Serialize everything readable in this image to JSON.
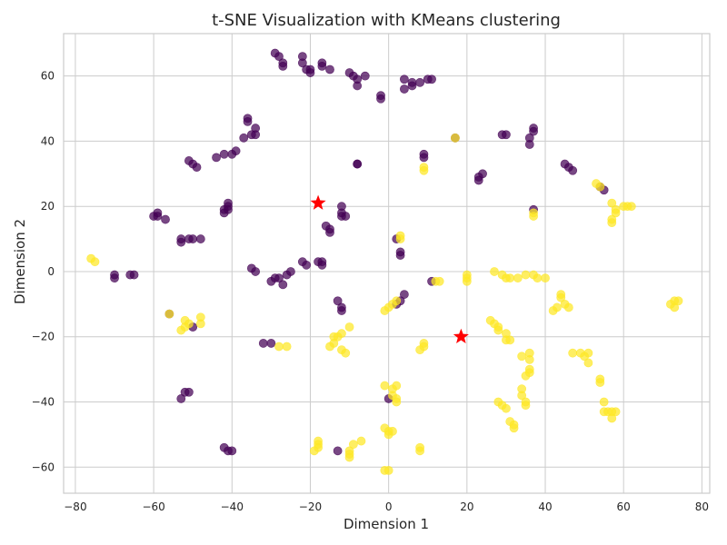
{
  "chart_data": {
    "type": "scatter",
    "title": "t-SNE Visualization with KMeans clustering",
    "xlabel": "Dimension 1",
    "ylabel": "Dimension 2",
    "xlim": [
      -83,
      82
    ],
    "ylim": [
      -68,
      73
    ],
    "xticks": [
      -80,
      -60,
      -40,
      -20,
      0,
      20,
      40,
      60,
      80
    ],
    "yticks": [
      -60,
      -40,
      -20,
      0,
      20,
      40,
      60
    ],
    "grid": true,
    "colors": {
      "cluster_0": "#440154",
      "cluster_1": "#fde725",
      "centroid": "#ff0000",
      "frame": "#cccccc"
    },
    "series": [
      {
        "cluster": 0,
        "points": [
          [
            -29,
            67
          ],
          [
            -28,
            66
          ],
          [
            -27,
            64
          ],
          [
            -27,
            63
          ],
          [
            -22,
            66
          ],
          [
            -22,
            64
          ],
          [
            -21,
            62
          ],
          [
            -20,
            62
          ],
          [
            -20,
            61
          ],
          [
            -17,
            64
          ],
          [
            -17,
            63
          ],
          [
            -15,
            62
          ],
          [
            -10,
            61
          ],
          [
            -9,
            60
          ],
          [
            -8,
            59
          ],
          [
            -8,
            57
          ],
          [
            -6,
            60
          ],
          [
            -2,
            54
          ],
          [
            -2,
            53
          ],
          [
            4,
            59
          ],
          [
            4,
            56
          ],
          [
            6,
            57
          ],
          [
            6,
            58
          ],
          [
            8,
            58
          ],
          [
            10,
            59
          ],
          [
            11,
            59
          ],
          [
            -36,
            47
          ],
          [
            -36,
            46
          ],
          [
            -34,
            44
          ],
          [
            -35,
            42
          ],
          [
            -34,
            42
          ],
          [
            -37,
            41
          ],
          [
            -39,
            37
          ],
          [
            -40,
            36
          ],
          [
            -42,
            36
          ],
          [
            -44,
            35
          ],
          [
            -51,
            34
          ],
          [
            -50,
            33
          ],
          [
            -49,
            32
          ],
          [
            -8,
            33
          ],
          [
            -8,
            33
          ],
          [
            9,
            36
          ],
          [
            9,
            35
          ],
          [
            17,
            41
          ],
          [
            24,
            30
          ],
          [
            23,
            29
          ],
          [
            23,
            28
          ],
          [
            29,
            42
          ],
          [
            30,
            42
          ],
          [
            36,
            41
          ],
          [
            36,
            39
          ],
          [
            37,
            44
          ],
          [
            37,
            43
          ],
          [
            45,
            33
          ],
          [
            46,
            32
          ],
          [
            47,
            31
          ],
          [
            54,
            26
          ],
          [
            55,
            25
          ],
          [
            -60,
            17
          ],
          [
            -59,
            18
          ],
          [
            -59,
            17
          ],
          [
            -57,
            16
          ],
          [
            -53,
            9
          ],
          [
            -53,
            10
          ],
          [
            -51,
            10
          ],
          [
            -50,
            10
          ],
          [
            -48,
            10
          ],
          [
            -42,
            18
          ],
          [
            -42,
            19
          ],
          [
            -41,
            20
          ],
          [
            -41,
            21
          ],
          [
            -41,
            19
          ],
          [
            -12,
            20
          ],
          [
            -12,
            18
          ],
          [
            -12,
            17
          ],
          [
            -11,
            17
          ],
          [
            -16,
            14
          ],
          [
            -15,
            13
          ],
          [
            -15,
            12
          ],
          [
            -22,
            3
          ],
          [
            -21,
            2
          ],
          [
            -18,
            3
          ],
          [
            -17,
            3
          ],
          [
            -17,
            2
          ],
          [
            2,
            10
          ],
          [
            3,
            6
          ],
          [
            3,
            5
          ],
          [
            37,
            19
          ],
          [
            -35,
            1
          ],
          [
            -34,
            0
          ],
          [
            -30,
            -3
          ],
          [
            -29,
            -2
          ],
          [
            -28,
            -2
          ],
          [
            -27,
            -4
          ],
          [
            -26,
            -1
          ],
          [
            -25,
            0
          ],
          [
            -70,
            -1
          ],
          [
            -70,
            -2
          ],
          [
            -66,
            -1
          ],
          [
            -65,
            -1
          ],
          [
            11,
            -3
          ],
          [
            4,
            -7
          ],
          [
            3,
            -9
          ],
          [
            2,
            -10
          ],
          [
            -13,
            -9
          ],
          [
            -12,
            -11
          ],
          [
            -12,
            -12
          ],
          [
            -56,
            -13
          ],
          [
            -50,
            -17
          ],
          [
            -32,
            -22
          ],
          [
            -30,
            -22
          ],
          [
            -52,
            -37
          ],
          [
            -51,
            -37
          ],
          [
            -53,
            -39
          ],
          [
            0,
            -39
          ],
          [
            -42,
            -54
          ],
          [
            -41,
            -55
          ],
          [
            -40,
            -55
          ],
          [
            -13,
            -55
          ]
        ]
      },
      {
        "cluster": 1,
        "points": [
          [
            -76,
            4
          ],
          [
            -75,
            3
          ],
          [
            -56,
            -13
          ],
          [
            -48,
            -14
          ],
          [
            -52,
            -15
          ],
          [
            -51,
            -16
          ],
          [
            -48,
            -16
          ],
          [
            -53,
            -18
          ],
          [
            -52,
            -17
          ],
          [
            -28,
            -23
          ],
          [
            -26,
            -23
          ],
          [
            -14,
            -20
          ],
          [
            -13,
            -20
          ],
          [
            -12,
            -19
          ],
          [
            -10,
            -17
          ],
          [
            -14,
            -22
          ],
          [
            -15,
            -23
          ],
          [
            -12,
            -24
          ],
          [
            -11,
            -25
          ],
          [
            0,
            -11
          ],
          [
            1,
            -10
          ],
          [
            2,
            -9
          ],
          [
            -1,
            -12
          ],
          [
            9,
            32
          ],
          [
            9,
            31
          ],
          [
            17,
            41
          ],
          [
            3,
            11
          ],
          [
            3,
            10
          ],
          [
            12,
            -3
          ],
          [
            13,
            -3
          ],
          [
            20,
            -1
          ],
          [
            20,
            -2
          ],
          [
            20,
            -3
          ],
          [
            9,
            -22
          ],
          [
            9,
            -23
          ],
          [
            8,
            -24
          ],
          [
            27,
            0
          ],
          [
            29,
            -1
          ],
          [
            30,
            -2
          ],
          [
            31,
            -2
          ],
          [
            33,
            -2
          ],
          [
            35,
            -1
          ],
          [
            37,
            -1
          ],
          [
            38,
            -2
          ],
          [
            40,
            -2
          ],
          [
            26,
            -15
          ],
          [
            27,
            -16
          ],
          [
            28,
            -17
          ],
          [
            28,
            -18
          ],
          [
            30,
            -19
          ],
          [
            30,
            -21
          ],
          [
            31,
            -21
          ],
          [
            36,
            -25
          ],
          [
            34,
            -26
          ],
          [
            36,
            -27
          ],
          [
            36,
            -30
          ],
          [
            36,
            -31
          ],
          [
            35,
            -32
          ],
          [
            42,
            -12
          ],
          [
            43,
            -11
          ],
          [
            44,
            -7
          ],
          [
            44,
            -8
          ],
          [
            45,
            -10
          ],
          [
            46,
            -11
          ],
          [
            37,
            18
          ],
          [
            37,
            17
          ],
          [
            53,
            27
          ],
          [
            54,
            26
          ],
          [
            57,
            21
          ],
          [
            58,
            19
          ],
          [
            58,
            18
          ],
          [
            57,
            16
          ],
          [
            57,
            15
          ],
          [
            60,
            20
          ],
          [
            61,
            20
          ],
          [
            62,
            20
          ],
          [
            72,
            -10
          ],
          [
            73,
            -9
          ],
          [
            73,
            -11
          ],
          [
            74,
            -9
          ],
          [
            47,
            -25
          ],
          [
            49,
            -25
          ],
          [
            51,
            -25
          ],
          [
            50,
            -26
          ],
          [
            51,
            -28
          ],
          [
            54,
            -33
          ],
          [
            54,
            -34
          ],
          [
            34,
            -36
          ],
          [
            34,
            -38
          ],
          [
            35,
            -40
          ],
          [
            35,
            -41
          ],
          [
            28,
            -40
          ],
          [
            29,
            -41
          ],
          [
            30,
            -42
          ],
          [
            31,
            -46
          ],
          [
            32,
            -47
          ],
          [
            32,
            -48
          ],
          [
            55,
            -40
          ],
          [
            55,
            -43
          ],
          [
            56,
            -43
          ],
          [
            57,
            -43
          ],
          [
            57,
            -45
          ],
          [
            58,
            -43
          ],
          [
            -1,
            -35
          ],
          [
            1,
            -36
          ],
          [
            2,
            -35
          ],
          [
            1,
            -38
          ],
          [
            2,
            -39
          ],
          [
            2,
            -40
          ],
          [
            -1,
            -48
          ],
          [
            0,
            -49
          ],
          [
            1,
            -49
          ],
          [
            0,
            -50
          ],
          [
            8,
            -54
          ],
          [
            8,
            -55
          ],
          [
            -1,
            -61
          ],
          [
            0,
            -61
          ],
          [
            -18,
            -52
          ],
          [
            -18,
            -53
          ],
          [
            -18,
            -54
          ],
          [
            -19,
            -55
          ],
          [
            -10,
            -55
          ],
          [
            -10,
            -56
          ],
          [
            -10,
            -57
          ],
          [
            -9,
            -53
          ],
          [
            -7,
            -52
          ]
        ]
      }
    ],
    "centroids": [
      [
        -18,
        21
      ],
      [
        18.5,
        -20
      ]
    ]
  }
}
